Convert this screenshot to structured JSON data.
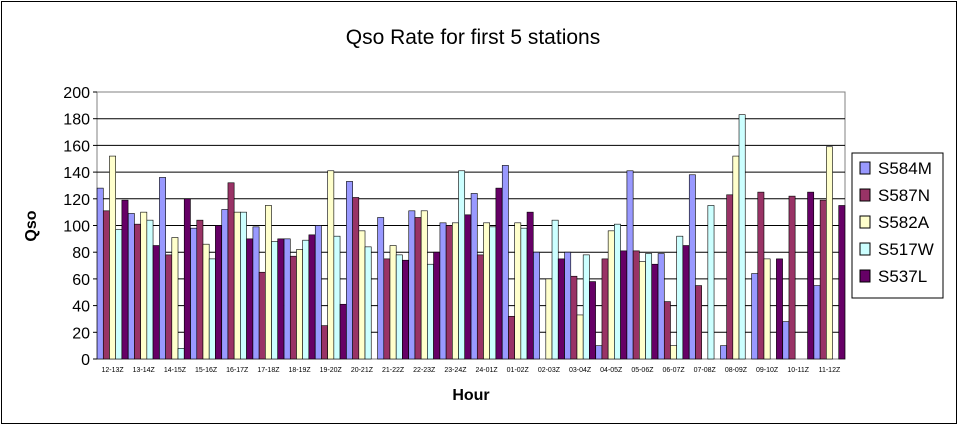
{
  "chart_data": {
    "type": "bar",
    "title": "Qso Rate for first 5 stations",
    "xlabel": "Hour",
    "ylabel": "Qso",
    "ylim": [
      0,
      200
    ],
    "yticks": [
      0,
      20,
      40,
      60,
      80,
      100,
      120,
      140,
      160,
      180,
      200
    ],
    "grid": "horizontal",
    "legend_position": "right",
    "categories": [
      "12-13Z",
      "13-14Z",
      "14-15Z",
      "15-16Z",
      "16-17Z",
      "17-18Z",
      "18-19Z",
      "19-20Z",
      "20-21Z",
      "21-22Z",
      "22-23Z",
      "23-24Z",
      "24-01Z",
      "01-02Z",
      "02-03Z",
      "03-04Z",
      "04-05Z",
      "05-06Z",
      "06-07Z",
      "07-08Z",
      "08-09Z",
      "09-10Z",
      "10-11Z",
      "11-12Z"
    ],
    "series": [
      {
        "name": "S584M",
        "color": "#9999ff",
        "values": [
          128,
          109,
          136,
          98,
          112,
          99,
          90,
          100,
          133,
          106,
          111,
          102,
          124,
          145,
          80,
          80,
          10,
          141,
          79,
          138,
          10,
          64,
          28,
          55
        ]
      },
      {
        "name": "S587N",
        "color": "#993366",
        "values": [
          111,
          101,
          78,
          104,
          132,
          65,
          77,
          25,
          121,
          75,
          106,
          100,
          78,
          32,
          0,
          62,
          75,
          81,
          43,
          55,
          123,
          125,
          122,
          119
        ]
      },
      {
        "name": "S582A",
        "color": "#ffffcc",
        "values": [
          152,
          110,
          91,
          86,
          110,
          115,
          82,
          141,
          96,
          85,
          111,
          102,
          102,
          102,
          60,
          33,
          96,
          73,
          10,
          0,
          152,
          75,
          0,
          159
        ]
      },
      {
        "name": "S517W",
        "color": "#ccffff",
        "values": [
          97,
          104,
          8,
          75,
          110,
          88,
          89,
          92,
          84,
          78,
          71,
          141,
          99,
          98,
          104,
          78,
          101,
          79,
          92,
          115,
          183,
          0,
          0,
          0
        ]
      },
      {
        "name": "S537L",
        "color": "#660066",
        "values": [
          119,
          85,
          120,
          100,
          90,
          90,
          93,
          41,
          0,
          74,
          80,
          108,
          128,
          110,
          75,
          58,
          81,
          71,
          85,
          0,
          0,
          75,
          125,
          115
        ]
      }
    ]
  }
}
